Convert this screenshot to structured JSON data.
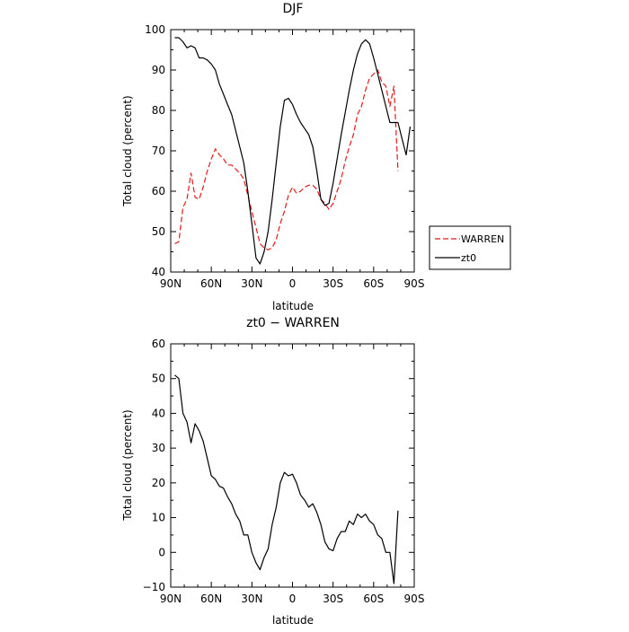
{
  "chart_data": [
    {
      "type": "line",
      "title": "DJF",
      "xlabel": "latitude",
      "ylabel": "Total cloud (percent)",
      "xlim": [
        90,
        -90
      ],
      "ylim": [
        40,
        100
      ],
      "xticks": [
        90,
        60,
        30,
        0,
        -30,
        -60,
        -90
      ],
      "xtick_labels": [
        "90N",
        "60N",
        "30N",
        "0",
        "30S",
        "60S",
        "90S"
      ],
      "yticks": [
        40,
        50,
        60,
        70,
        80,
        90,
        100
      ],
      "ytick_labels": [
        "40",
        "50",
        "60",
        "70",
        "80",
        "90",
        "100"
      ],
      "grid": false,
      "legend_position": "right",
      "series": [
        {
          "name": "WARREN",
          "color": "#e41a1c",
          "dash": "dashed",
          "x": [
            87,
            84,
            81,
            78,
            75,
            72,
            69,
            66,
            63,
            60,
            57,
            54,
            51,
            48,
            45,
            42,
            39,
            36,
            33,
            30,
            27,
            24,
            21,
            18,
            15,
            12,
            9,
            6,
            3,
            0,
            -3,
            -6,
            -9,
            -12,
            -15,
            -18,
            -21,
            -24,
            -27,
            -30,
            -33,
            -36,
            -39,
            -42,
            -45,
            -48,
            -51,
            -54,
            -57,
            -60,
            -63,
            -66,
            -69,
            -72,
            -75,
            -78
          ],
          "y": [
            47,
            47.5,
            56,
            58,
            64.5,
            58.5,
            58,
            61,
            65,
            68,
            70.5,
            69,
            68,
            66.5,
            66.5,
            65.5,
            64.5,
            63,
            59,
            55,
            51,
            47,
            46,
            45.5,
            46,
            48,
            52,
            55,
            59,
            61,
            59.5,
            60,
            61,
            61.5,
            61.5,
            60.5,
            58,
            57,
            55.5,
            57,
            60,
            63,
            67.5,
            71,
            74,
            79,
            81,
            85,
            88,
            89,
            90,
            87,
            86,
            81,
            86,
            65
          ]
        },
        {
          "name": "zt0",
          "color": "#000000",
          "dash": "solid",
          "x": [
            87,
            84,
            81,
            78,
            75,
            72,
            69,
            66,
            63,
            60,
            57,
            54,
            51,
            48,
            45,
            42,
            39,
            36,
            33,
            30,
            27,
            24,
            21,
            18,
            15,
            12,
            9,
            6,
            3,
            0,
            -3,
            -6,
            -9,
            -12,
            -15,
            -18,
            -21,
            -24,
            -27,
            -30,
            -33,
            -36,
            -39,
            -42,
            -45,
            -48,
            -51,
            -54,
            -57,
            -60,
            -63,
            -66,
            -69,
            -72,
            -75,
            -78,
            -81,
            -84,
            -87
          ],
          "y": [
            98,
            98,
            97,
            95.5,
            96,
            95.5,
            93,
            93,
            92.5,
            91.5,
            90,
            86.5,
            84,
            81.5,
            79,
            75,
            71,
            67,
            60,
            52,
            43.5,
            42,
            45,
            50,
            58,
            67,
            76,
            82.5,
            83,
            81.5,
            79,
            77,
            75.5,
            74,
            71,
            65,
            58,
            56.5,
            57,
            62,
            68,
            74,
            79.5,
            85,
            90,
            94,
            96.5,
            97.5,
            96.5,
            93,
            89,
            85,
            81,
            77,
            77,
            77,
            73,
            69,
            76
          ]
        }
      ]
    },
    {
      "type": "line",
      "title": "zt0 − WARREN",
      "xlabel": "latitude",
      "ylabel": "Total cloud (percent)",
      "xlim": [
        90,
        -90
      ],
      "ylim": [
        -10,
        60
      ],
      "xticks": [
        90,
        60,
        30,
        0,
        -30,
        -60,
        -90
      ],
      "xtick_labels": [
        "90N",
        "60N",
        "30N",
        "0",
        "30S",
        "60S",
        "90S"
      ],
      "yticks": [
        -10,
        0,
        10,
        20,
        30,
        40,
        50,
        60
      ],
      "ytick_labels": [
        "−10",
        "0",
        "10",
        "20",
        "30",
        "40",
        "50",
        "60"
      ],
      "grid": false,
      "series": [
        {
          "color": "#000000",
          "dash": "solid",
          "x": [
            87,
            84,
            81,
            78,
            75,
            72,
            69,
            66,
            63,
            60,
            57,
            54,
            51,
            48,
            45,
            42,
            39,
            36,
            33,
            30,
            27,
            24,
            21,
            18,
            15,
            12,
            9,
            6,
            3,
            0,
            -3,
            -6,
            -9,
            -12,
            -15,
            -18,
            -21,
            -24,
            -27,
            -30,
            -33,
            -36,
            -39,
            -42,
            -45,
            -48,
            -51,
            -54,
            -57,
            -60,
            -63,
            -66,
            -69,
            -72,
            -75,
            -78
          ],
          "y": [
            51,
            50,
            40,
            37.5,
            31.5,
            37,
            35,
            32,
            27,
            22,
            21,
            19,
            18.5,
            16,
            14,
            11,
            9,
            5,
            5,
            0,
            -3,
            -5,
            -1.5,
            1,
            8,
            13,
            20,
            23,
            22,
            22.5,
            20,
            16.5,
            15,
            13,
            14,
            11.5,
            8,
            3,
            1,
            0.5,
            4,
            6,
            6,
            9,
            8,
            11,
            10,
            11,
            9,
            8,
            5,
            4,
            0,
            0,
            -9,
            12
          ]
        }
      ]
    }
  ]
}
